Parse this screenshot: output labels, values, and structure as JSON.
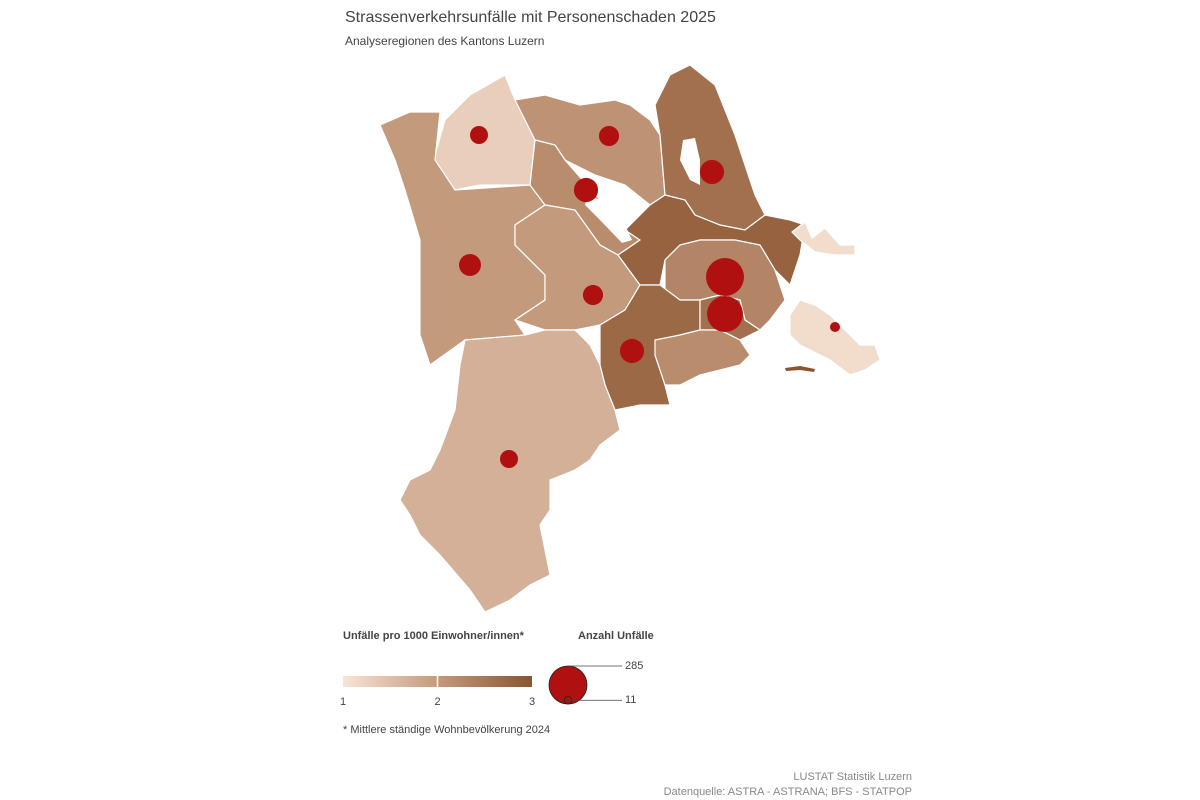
{
  "header": {
    "title": "Strassenverkehrsunfälle mit Personenschaden 2025",
    "subtitle": "Analyseregionen des Kantons Luzern"
  },
  "map": {
    "regions": [
      {
        "rate": 1.3,
        "accidents": 64
      },
      {
        "rate": 2.0,
        "accidents": 95
      },
      {
        "rate": 2.1,
        "accidents": 80
      },
      {
        "rate": 2.2,
        "accidents": 115
      },
      {
        "rate": 2.6,
        "accidents": 115
      },
      {
        "rate": 2.0,
        "accidents": 80
      },
      {
        "rate": 2.8,
        "accidents": null
      },
      {
        "rate": 2.3,
        "accidents": 285
      },
      {
        "rate": 2.7,
        "accidents": 115
      },
      {
        "rate": 2.6,
        "accidents": 255
      },
      {
        "rate": 2.2,
        "accidents": null
      },
      {
        "rate": 1.7,
        "accidents": 64
      },
      {
        "rate": 1.1,
        "accidents": null
      },
      {
        "rate": 1.1,
        "accidents": 20
      }
    ],
    "bubble_color": "#b01010"
  },
  "color_legend": {
    "title": "Unfälle pro 1000 Einwohner/innen*",
    "ticks": [
      1,
      2,
      3
    ],
    "colors": [
      "#f7e4d6",
      "#c49a7c",
      "#8b5431"
    ]
  },
  "bubble_legend": {
    "title": "Anzahl Unfälle",
    "values": [
      285,
      11
    ]
  },
  "footnote": "* Mittlere ständige Wohnbevölkerung 2024",
  "source": {
    "publisher": "LUSTAT Statistik Luzern",
    "data": "Datenquelle: ASTRA - ASTRANA; BFS - STATPOP"
  }
}
